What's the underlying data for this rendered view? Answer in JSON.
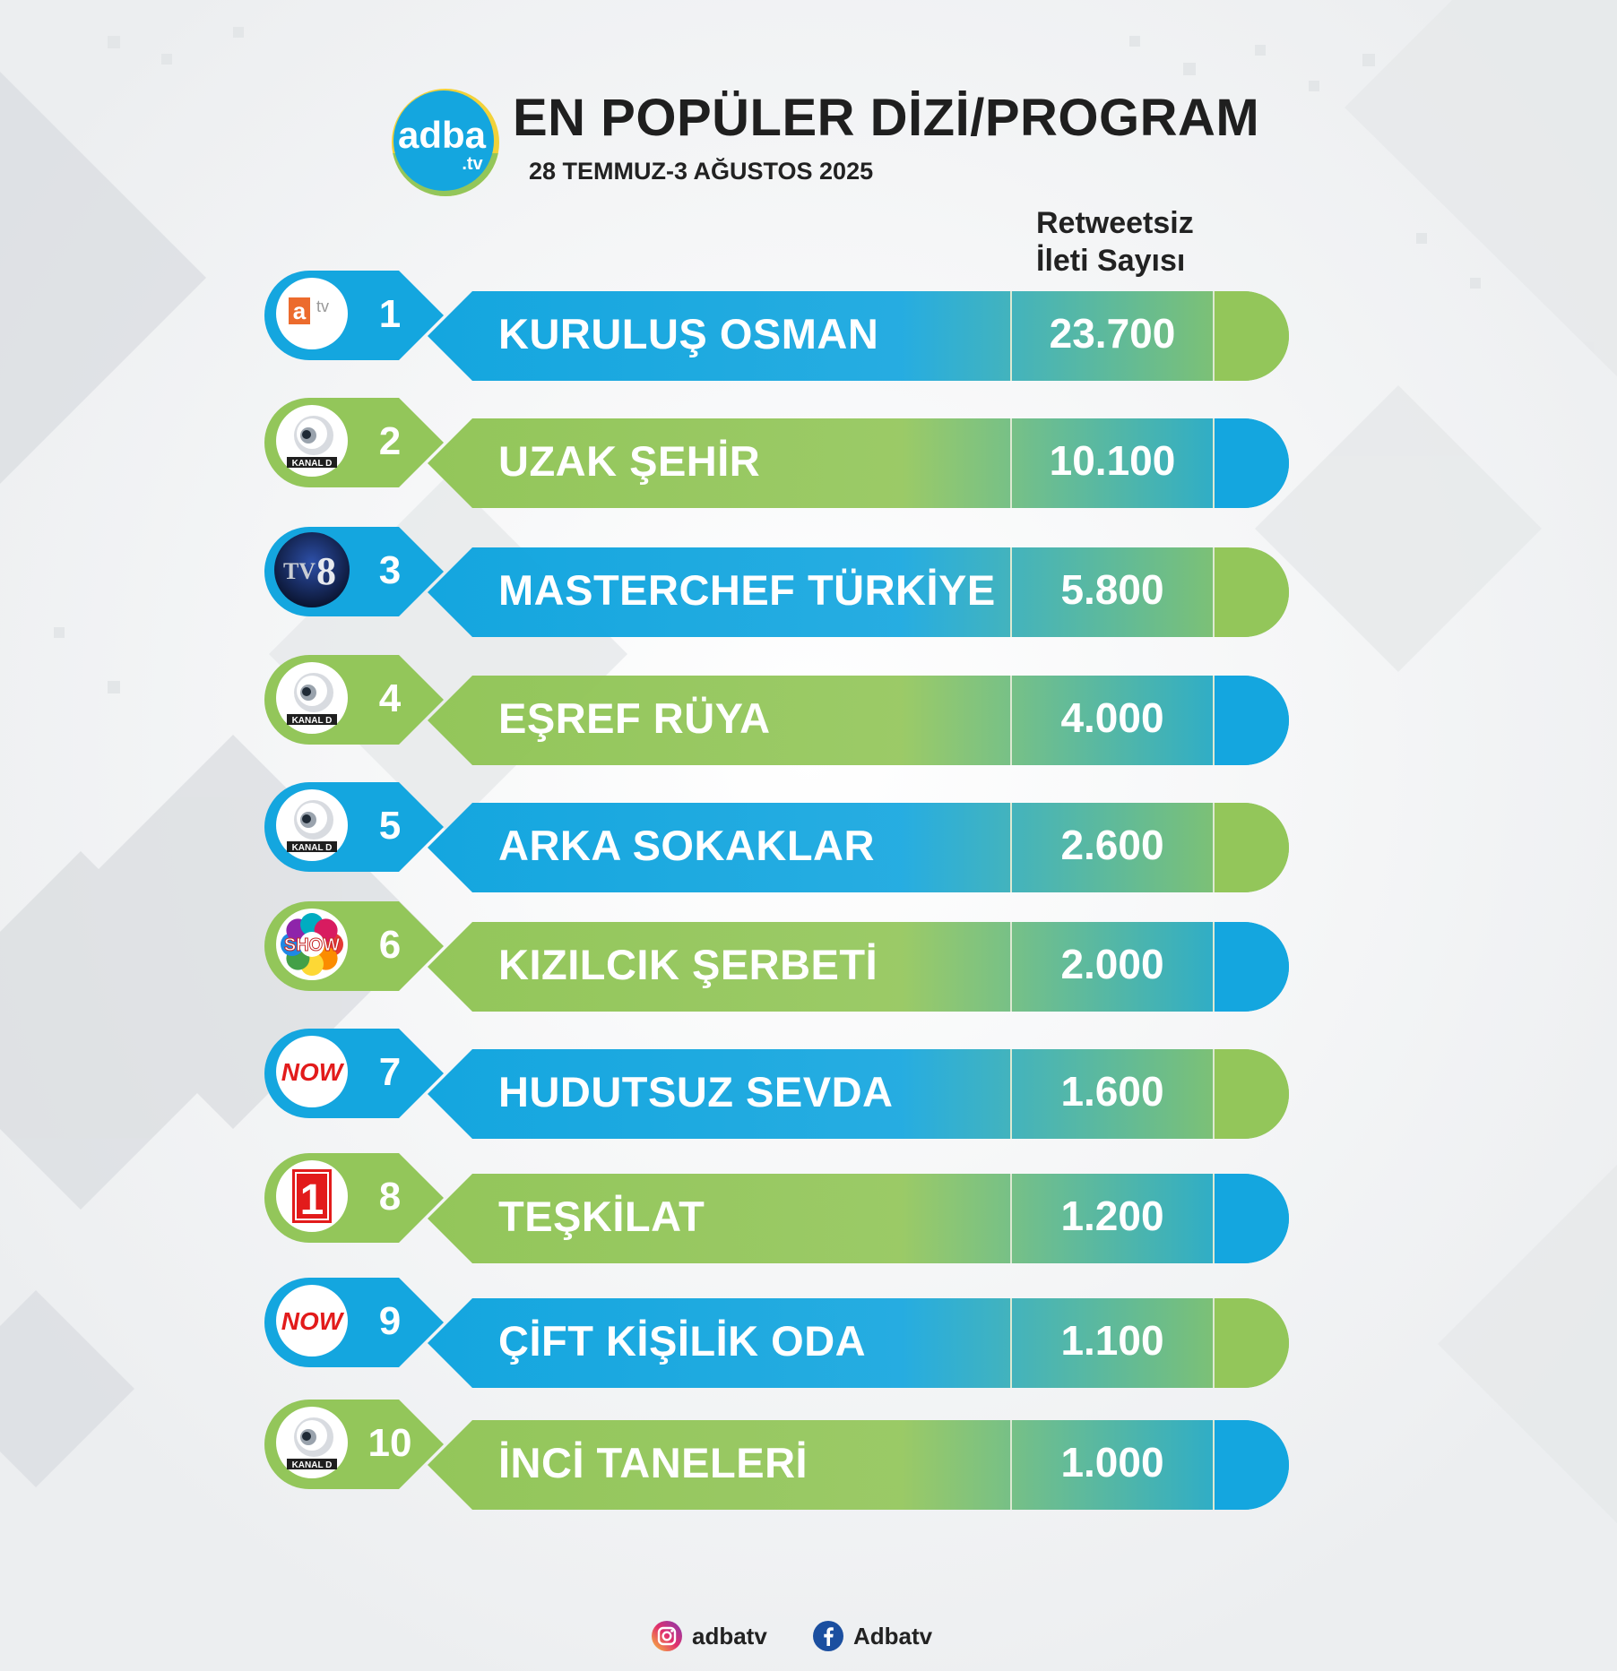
{
  "header": {
    "logo_text": "adba",
    "logo_sub": ".tv",
    "title": "EN POPÜLER DİZİ/PROGRAM",
    "date_range": "28 TEMMUZ-3 AĞUSTOS 2025",
    "column_header_line1": "Retweetsiz",
    "column_header_line2": "İleti Sayısı"
  },
  "colors": {
    "blue": "#14a6df",
    "green": "#93c65a",
    "divider": "#dce9d2"
  },
  "rows": [
    {
      "rank": "1",
      "name": "KURULUŞ OSMAN",
      "count": "23.700",
      "channel": "atv",
      "channel_icon": "atv-logo-icon",
      "scheme": "blue"
    },
    {
      "rank": "2",
      "name": "UZAK ŞEHİR",
      "count": "10.100",
      "channel": "KANAL D",
      "channel_icon": "kanal-d-logo-icon",
      "scheme": "green"
    },
    {
      "rank": "3",
      "name": "MASTERCHEF TÜRKİYE",
      "count": "5.800",
      "channel": "TV8",
      "channel_icon": "tv8-logo-icon",
      "scheme": "blue"
    },
    {
      "rank": "4",
      "name": "EŞREF RÜYA",
      "count": "4.000",
      "channel": "KANAL D",
      "channel_icon": "kanal-d-logo-icon",
      "scheme": "green"
    },
    {
      "rank": "5",
      "name": "ARKA SOKAKLAR",
      "count": "2.600",
      "channel": "KANAL D",
      "channel_icon": "kanal-d-logo-icon",
      "scheme": "blue"
    },
    {
      "rank": "6",
      "name": "KIZILCIK ŞERBETİ",
      "count": "2.000",
      "channel": "SHOW",
      "channel_icon": "show-tv-logo-icon",
      "scheme": "green"
    },
    {
      "rank": "7",
      "name": "HUDUTSUZ SEVDA",
      "count": "1.600",
      "channel": "NOW",
      "channel_icon": "now-logo-icon",
      "scheme": "blue"
    },
    {
      "rank": "8",
      "name": "TEŞKİLAT",
      "count": "1.200",
      "channel": "TRT 1",
      "channel_icon": "trt1-logo-icon",
      "scheme": "green"
    },
    {
      "rank": "9",
      "name": "ÇİFT KİŞİLİK ODA",
      "count": "1.100",
      "channel": "NOW",
      "channel_icon": "now-logo-icon",
      "scheme": "blue"
    },
    {
      "rank": "10",
      "name": "İNCİ TANELERİ",
      "count": "1.000",
      "channel": "KANAL D",
      "channel_icon": "kanal-d-logo-icon",
      "scheme": "green"
    }
  ],
  "footer": {
    "instagram_handle": "adbatv",
    "facebook_handle": "Adbatv"
  }
}
